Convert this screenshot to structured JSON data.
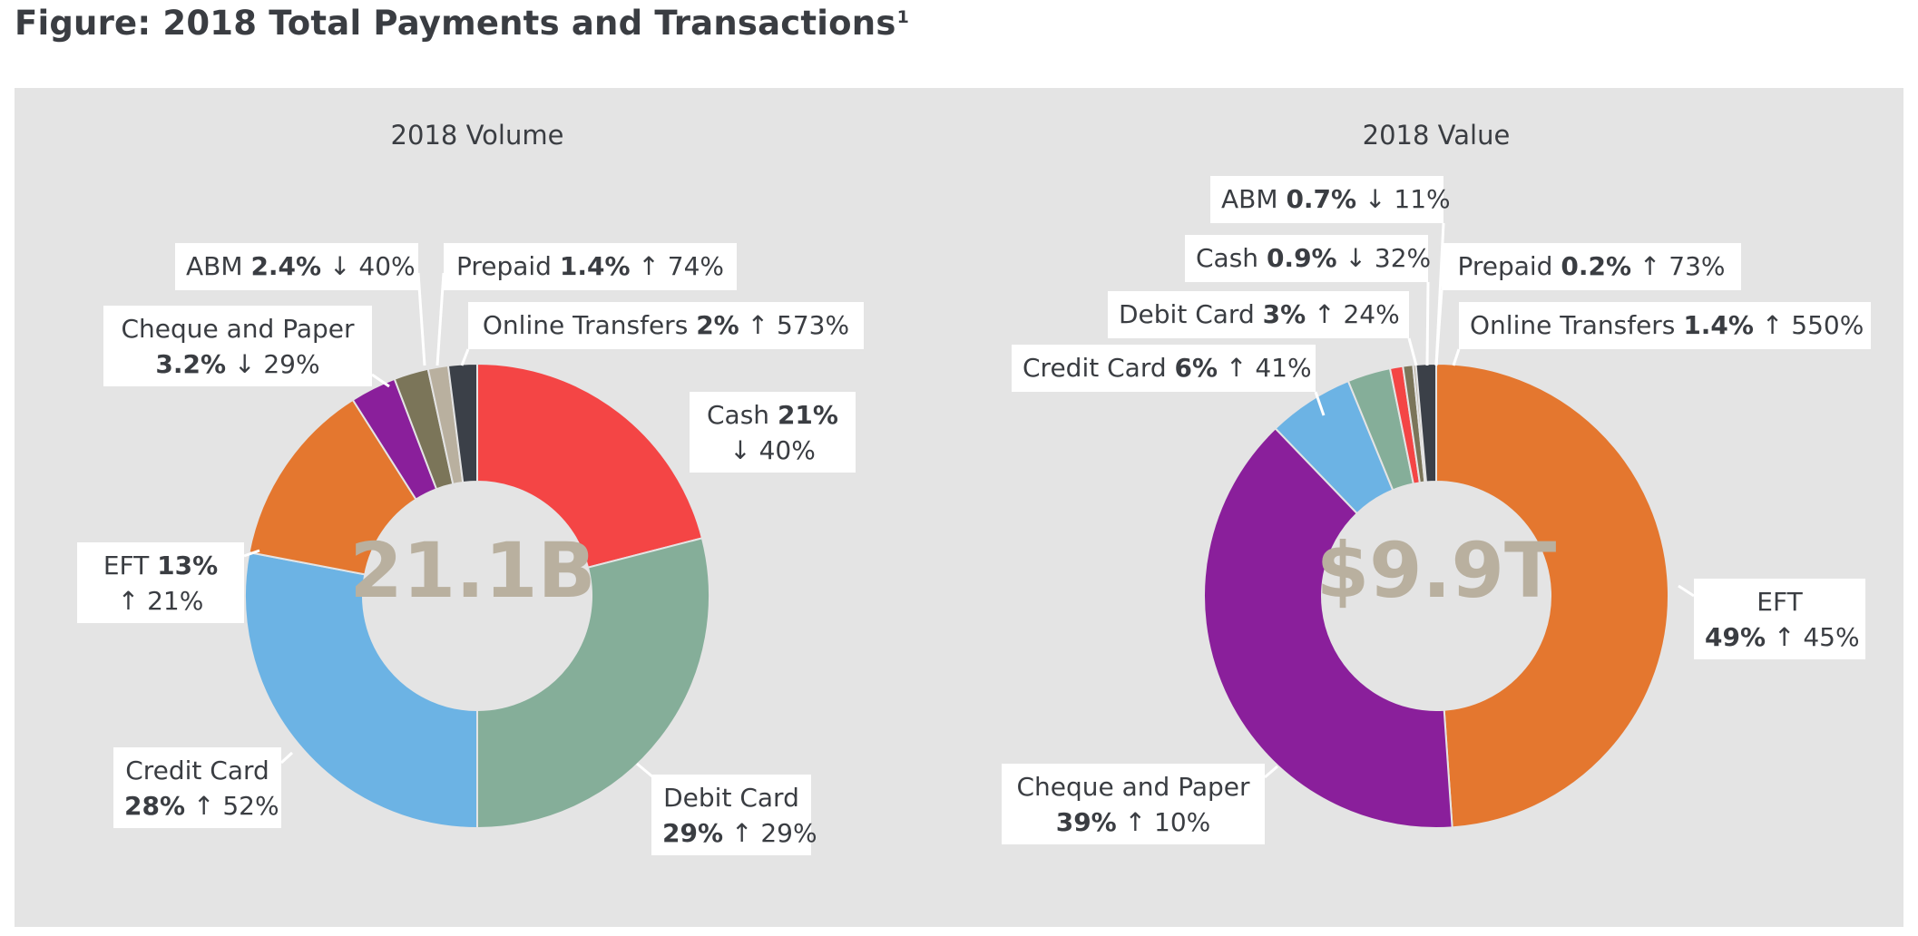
{
  "page_title": "Figure: 2018 Total Payments and Transactions",
  "page_title_sup": "1",
  "chart_data": [
    {
      "type": "donut",
      "title": "2018 Volume",
      "center_label": "21.1B",
      "colors": [
        "#f44545",
        "#85ae99",
        "#6cb3e4",
        "#e4772f",
        "#8a1f9b",
        "#7b7559",
        "#b9b09f",
        "#3b4048"
      ],
      "slices": [
        {
          "name": "Cash",
          "value": 21,
          "pct": "21%",
          "arrow": "↓",
          "change": "40%"
        },
        {
          "name": "Debit Card",
          "value": 29,
          "pct": "29%",
          "arrow": "↑",
          "change": "29%"
        },
        {
          "name": "Credit Card",
          "value": 28,
          "pct": "28%",
          "arrow": "↑",
          "change": "52%"
        },
        {
          "name": "EFT",
          "value": 13,
          "pct": "13%",
          "arrow": "↑",
          "change": "21%"
        },
        {
          "name": "Cheque and Paper",
          "value": 3.2,
          "pct": "3.2%",
          "arrow": "↓",
          "change": "29%"
        },
        {
          "name": "ABM",
          "value": 2.4,
          "pct": "2.4%",
          "arrow": "↓",
          "change": "40%"
        },
        {
          "name": "Prepaid",
          "value": 1.4,
          "pct": "1.4%",
          "arrow": "↑",
          "change": "74%"
        },
        {
          "name": "Online Transfers",
          "value": 2,
          "pct": "2%",
          "arrow": "↑",
          "change": "573%"
        }
      ]
    },
    {
      "type": "donut",
      "title": "2018 Value",
      "center_label": "$9.9T",
      "colors": [
        "#e4772f",
        "#8a1f9b",
        "#6cb3e4",
        "#85ae99",
        "#f44545",
        "#7b7559",
        "#b9b09f",
        "#3b4048"
      ],
      "slices": [
        {
          "name": "EFT",
          "value": 49,
          "pct": "49%",
          "arrow": "↑",
          "change": "45%"
        },
        {
          "name": "Cheque and Paper",
          "value": 39,
          "pct": "39%",
          "arrow": "↑",
          "change": "10%"
        },
        {
          "name": "Credit Card",
          "value": 6,
          "pct": "6%",
          "arrow": "↑",
          "change": "41%"
        },
        {
          "name": "Debit Card",
          "value": 3,
          "pct": "3%",
          "arrow": "↑",
          "change": "24%"
        },
        {
          "name": "Cash",
          "value": 0.9,
          "pct": "0.9%",
          "arrow": "↓",
          "change": "32%"
        },
        {
          "name": "ABM",
          "value": 0.7,
          "pct": "0.7%",
          "arrow": "↓",
          "change": "11%"
        },
        {
          "name": "Prepaid",
          "value": 0.2,
          "pct": "0.2%",
          "arrow": "↑",
          "change": "73%"
        },
        {
          "name": "Online Transfers",
          "value": 1.4,
          "pct": "1.4%",
          "arrow": "↑",
          "change": "550%"
        }
      ]
    }
  ]
}
